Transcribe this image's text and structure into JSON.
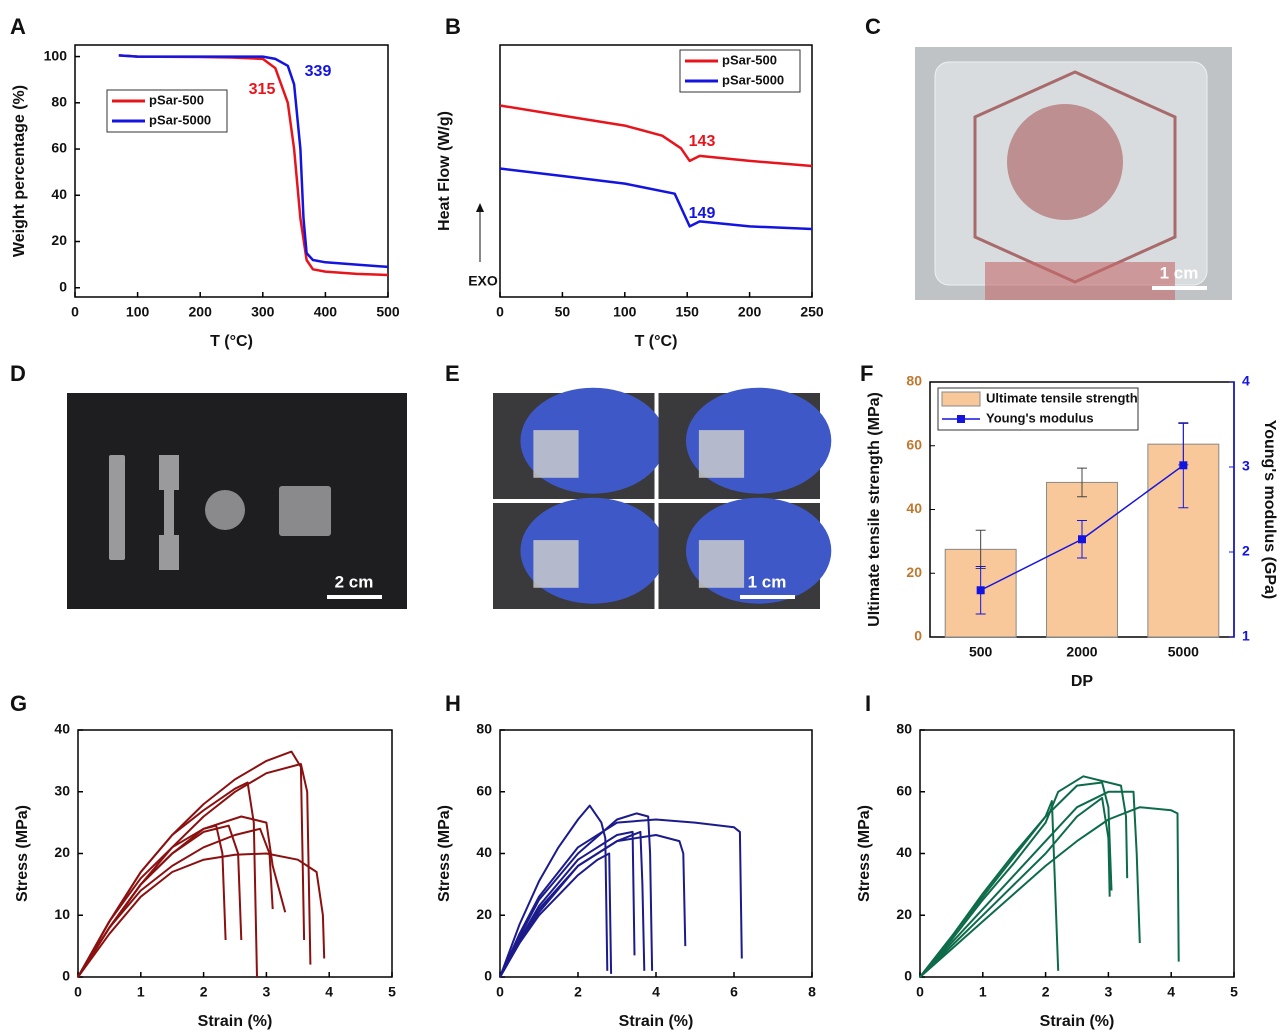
{
  "chart_data": [
    {
      "panel": "A",
      "type": "line",
      "xlabel": "T (°C)",
      "ylabel": "Weight percentage (%)",
      "xlim": [
        0,
        500
      ],
      "xticks": [
        0,
        100,
        200,
        300,
        400,
        500
      ],
      "ylim": [
        -4,
        105
      ],
      "yticks": [
        0,
        20,
        40,
        60,
        80,
        100
      ],
      "legend": "center left",
      "series": [
        {
          "name": "pSar-500",
          "color": "#e8141c",
          "x": [
            70,
            100,
            200,
            250,
            300,
            320,
            340,
            350,
            360,
            370,
            380,
            400,
            450,
            500
          ],
          "values": [
            100.5,
            100,
            99.8,
            99.6,
            99,
            95,
            80,
            60,
            30,
            12,
            8,
            7,
            6,
            5.5
          ]
        },
        {
          "name": "pSar-5000",
          "color": "#1414e0",
          "x": [
            70,
            100,
            200,
            250,
            300,
            320,
            340,
            350,
            360,
            365,
            370,
            380,
            400,
            450,
            500
          ],
          "values": [
            100.5,
            100,
            100,
            100,
            100,
            99,
            96,
            88,
            60,
            30,
            15,
            12,
            11,
            10,
            9
          ]
        }
      ],
      "annotations": [
        {
          "text": "315",
          "color": "#e8141c"
        },
        {
          "text": "339",
          "color": "#1414e0"
        }
      ]
    },
    {
      "panel": "B",
      "type": "line",
      "xlabel": "T (°C)",
      "ylabel": "Heat Flow (W/g)",
      "xlim": [
        0,
        250
      ],
      "xticks": [
        0,
        50,
        100,
        150,
        200,
        250
      ],
      "ylim": [
        0,
        10
      ],
      "legend": "upper right",
      "series": [
        {
          "name": "pSar-500",
          "color": "#e8141c",
          "x": [
            0,
            50,
            100,
            130,
            145,
            152,
            160,
            200,
            250
          ],
          "values": [
            7.6,
            7.2,
            6.8,
            6.4,
            5.9,
            5.4,
            5.6,
            5.4,
            5.2
          ]
        },
        {
          "name": "pSar-5000",
          "color": "#1414e0",
          "x": [
            0,
            50,
            100,
            140,
            152,
            160,
            200,
            250
          ],
          "values": [
            5.1,
            4.8,
            4.5,
            4.1,
            2.8,
            3.0,
            2.8,
            2.7
          ]
        }
      ],
      "annotations": [
        {
          "text": "143",
          "color": "#e8141c"
        },
        {
          "text": "149",
          "color": "#1414e0"
        },
        {
          "text": "EXO",
          "color": "#111111"
        }
      ]
    },
    {
      "panel": "F",
      "type": "bar-line",
      "xlabel": "DP",
      "ylabel": "Ultimate tensile strength (MPa)",
      "y2label": "Young's modulus (GPa)",
      "categories": [
        "500",
        "2000",
        "5000"
      ],
      "ylim": [
        0,
        80
      ],
      "yticks": [
        0,
        20,
        40,
        60,
        80
      ],
      "y2lim": [
        1,
        4
      ],
      "y2ticks": [
        1,
        2,
        3,
        4
      ],
      "legend": "upper left",
      "series": [
        {
          "name": "Ultimate tensile strength",
          "color": "#f8c89a",
          "values": [
            27.5,
            48.5,
            60.5
          ],
          "errors": [
            6,
            4.5,
            6.5
          ]
        },
        {
          "name": "Young's modulus",
          "color": "#1414e0",
          "axis": "y2",
          "values": [
            1.55,
            2.15,
            3.02
          ],
          "errors": [
            0.28,
            0.22,
            0.5
          ]
        }
      ]
    },
    {
      "panel": "G",
      "type": "line",
      "xlabel": "Strain (%)",
      "ylabel": "Stress (MPa)",
      "color": "#8b1010",
      "xlim": [
        0,
        5
      ],
      "xticks": [
        0,
        1,
        2,
        3,
        4,
        5
      ],
      "ylim": [
        0,
        40
      ],
      "yticks": [
        0,
        10,
        20,
        30,
        40
      ],
      "series": [
        {
          "x": [
            0,
            0.5,
            1,
            1.5,
            2,
            2.5,
            3,
            3.4,
            3.55,
            3.6
          ],
          "values": [
            0,
            9,
            17,
            23,
            28,
            32,
            35,
            36.5,
            34,
            6
          ]
        },
        {
          "x": [
            0,
            0.5,
            1,
            1.5,
            2,
            2.5,
            3,
            3.55,
            3.65,
            3.7
          ],
          "values": [
            0,
            8,
            15,
            21,
            26,
            30,
            33,
            34.5,
            30,
            2
          ]
        },
        {
          "x": [
            0,
            0.5,
            1,
            1.5,
            2,
            2.5,
            2.7,
            2.8,
            2.85
          ],
          "values": [
            0,
            9,
            17,
            23,
            27,
            30.5,
            31.5,
            25,
            0
          ]
        },
        {
          "x": [
            0,
            0.5,
            1,
            1.5,
            2,
            2.6,
            3,
            3.1,
            3.3
          ],
          "values": [
            0,
            8,
            15,
            20,
            24,
            26,
            25,
            18,
            10.5
          ]
        },
        {
          "x": [
            0,
            0.5,
            1,
            1.5,
            2,
            2.2,
            2.3,
            2.35
          ],
          "values": [
            0,
            9,
            16,
            21,
            24,
            24.5,
            20,
            6
          ]
        },
        {
          "x": [
            0,
            0.5,
            1,
            1.5,
            2,
            2.4,
            2.55,
            2.6
          ],
          "values": [
            0,
            8,
            15,
            20,
            23.5,
            24.5,
            20,
            6
          ]
        },
        {
          "x": [
            0,
            0.5,
            1,
            1.5,
            2,
            2.5,
            2.9,
            3.05,
            3.1
          ],
          "values": [
            0,
            8,
            14,
            18,
            21,
            23,
            24,
            20,
            11
          ]
        },
        {
          "x": [
            0,
            0.5,
            1,
            1.5,
            2,
            2.5,
            3,
            3.5,
            3.8,
            3.9,
            3.92
          ],
          "values": [
            0,
            7,
            13,
            17,
            19,
            19.8,
            20,
            19,
            17,
            10,
            3
          ]
        }
      ]
    },
    {
      "panel": "H",
      "type": "line",
      "xlabel": "Strain (%)",
      "ylabel": "Stress (MPa)",
      "color": "#1b1b8c",
      "xlim": [
        0,
        8
      ],
      "xticks": [
        0,
        2,
        4,
        6,
        8
      ],
      "ylim": [
        0,
        80
      ],
      "yticks": [
        0,
        20,
        40,
        60,
        80
      ],
      "series": [
        {
          "x": [
            0,
            0.5,
            1,
            1.5,
            2,
            2.3,
            2.6,
            2.7,
            2.75
          ],
          "values": [
            0,
            17,
            31,
            42,
            51,
            55.5,
            50,
            45,
            2
          ]
        },
        {
          "x": [
            0,
            0.5,
            1,
            2,
            3,
            4,
            5,
            6,
            6.15,
            6.2
          ],
          "values": [
            0,
            14,
            26,
            42,
            50,
            51,
            50,
            48.5,
            47,
            6
          ]
        },
        {
          "x": [
            0,
            0.5,
            1,
            2,
            3,
            3.5,
            3.8,
            3.85,
            3.9
          ],
          "values": [
            0,
            13,
            25,
            40,
            51,
            53,
            52,
            40,
            2
          ]
        },
        {
          "x": [
            0,
            0.5,
            1,
            2,
            3,
            3.4,
            3.45
          ],
          "values": [
            0,
            12,
            23,
            38,
            46,
            47,
            7
          ]
        },
        {
          "x": [
            0,
            0.5,
            1,
            2,
            3,
            4,
            4.6,
            4.7,
            4.75
          ],
          "values": [
            0,
            12,
            22,
            36,
            44,
            46,
            44,
            40,
            10
          ]
        },
        {
          "x": [
            0,
            0.5,
            1,
            2,
            2.5,
            2.8,
            2.85
          ],
          "values": [
            0,
            11,
            20,
            33,
            38,
            40,
            1
          ]
        },
        {
          "x": [
            0,
            0.5,
            1,
            2,
            3,
            3.6,
            3.65,
            3.7
          ],
          "values": [
            0,
            11,
            21,
            36,
            44,
            47,
            30,
            2
          ]
        }
      ]
    },
    {
      "panel": "I",
      "type": "line",
      "xlabel": "Strain (%)",
      "ylabel": "Stress (MPa)",
      "color": "#0e6b4a",
      "xlim": [
        0,
        5
      ],
      "xticks": [
        0,
        1,
        2,
        3,
        4,
        5
      ],
      "ylim": [
        0,
        80
      ],
      "yticks": [
        0,
        20,
        40,
        60,
        80
      ],
      "series": [
        {
          "x": [
            0,
            0.5,
            1,
            1.5,
            2,
            2.1,
            2.15,
            2.2
          ],
          "values": [
            0,
            13,
            27,
            40,
            52,
            57,
            30,
            2
          ]
        },
        {
          "x": [
            0,
            0.5,
            1,
            1.5,
            2,
            2.5,
            2.9,
            3,
            3.05
          ],
          "values": [
            0,
            13,
            26,
            39,
            52,
            62,
            63,
            55,
            28
          ]
        },
        {
          "x": [
            0,
            0.5,
            1,
            1.5,
            2,
            2.2,
            2.6,
            3.2,
            3.28,
            3.3
          ],
          "values": [
            0,
            12,
            25,
            37,
            50,
            60,
            65,
            62,
            52,
            32
          ]
        },
        {
          "x": [
            0,
            0.5,
            1,
            1.5,
            2,
            2.5,
            3,
            3.4,
            3.45,
            3.5
          ],
          "values": [
            0,
            11,
            22,
            33,
            44,
            55,
            60,
            60,
            40,
            11
          ]
        },
        {
          "x": [
            0,
            0.5,
            1,
            1.5,
            2,
            2.5,
            3,
            3.5,
            4,
            4.1,
            4.12
          ],
          "values": [
            0,
            9,
            18,
            27,
            36,
            44,
            51,
            55,
            54,
            53,
            5
          ]
        },
        {
          "x": [
            0,
            0.5,
            1,
            1.5,
            2,
            2.5,
            2.9,
            3,
            3.02
          ],
          "values": [
            0,
            10,
            20,
            30,
            40,
            52,
            58,
            45,
            26
          ]
        }
      ]
    }
  ],
  "photos": [
    {
      "panel": "C",
      "scale_bar": "1 cm"
    },
    {
      "panel": "D",
      "scale_bar": "2 cm"
    },
    {
      "panel": "E",
      "scale_bar": "1 cm"
    }
  ]
}
